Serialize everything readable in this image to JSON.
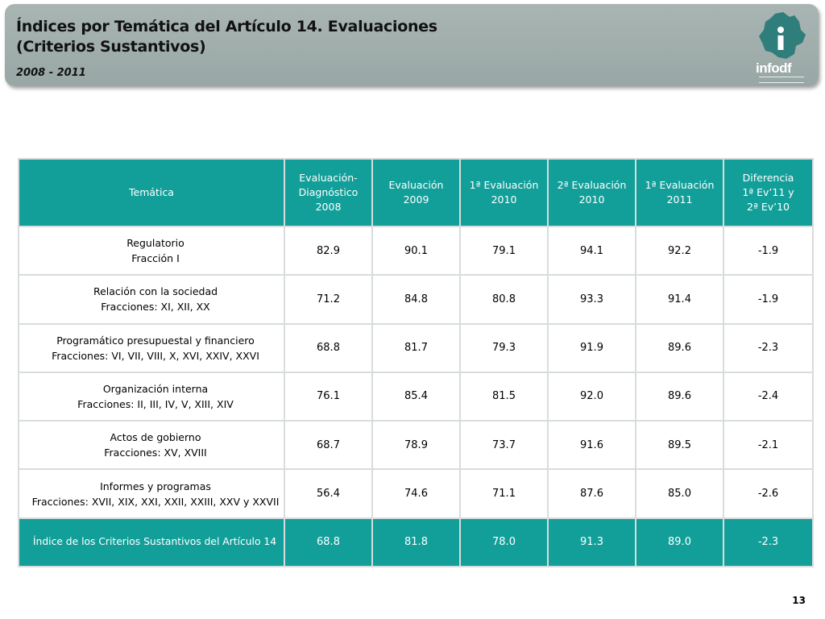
{
  "header": {
    "title_line1": "Índices por Temática del Artículo 14. Evaluaciones",
    "title_line2": "(Criterios Sustantivos)",
    "subtitle": "2008 - 2011",
    "logo_text": "infodf"
  },
  "table": {
    "columns": [
      "Temática",
      "Evaluación-Diagnóstico 2008",
      "Evaluación 2009",
      "1ª Evaluación 2010",
      "2ª Evaluación 2010",
      "1ª Evaluación 2011",
      "Diferencia 1ª Ev’11 y 2ª Ev’10"
    ],
    "column_lines": [
      [
        "Temática"
      ],
      [
        "Evaluación-",
        "Diagnóstico",
        "2008"
      ],
      [
        "Evaluación",
        "2009"
      ],
      [
        "1ª Evaluación",
        "2010"
      ],
      [
        "2ª Evaluación",
        "2010"
      ],
      [
        "1ª Evaluación",
        "2011"
      ],
      [
        "Diferencia",
        "1ª Ev’11 y",
        "2ª Ev’10"
      ]
    ],
    "rows": [
      {
        "topic": "Regulatorio",
        "detail": "Fracción I",
        "values": [
          "82.9",
          "90.1",
          "79.1",
          "94.1",
          "92.2",
          "-1.9"
        ]
      },
      {
        "topic": "Relación con la sociedad",
        "detail": "Fracciones: XI, XII, XX",
        "values": [
          "71.2",
          "84.8",
          "80.8",
          "93.3",
          "91.4",
          "-1.9"
        ]
      },
      {
        "topic": "Programático presupuestal y financiero",
        "detail": "Fracciones: VI, VII, VIII, X, XVI, XXIV, XXVI",
        "values": [
          "68.8",
          "81.7",
          "79.3",
          "91.9",
          "89.6",
          "-2.3"
        ]
      },
      {
        "topic": "Organización interna",
        "detail": "Fracciones: II, III, IV, V, XIII, XIV",
        "values": [
          "76.1",
          "85.4",
          "81.5",
          "92.0",
          "89.6",
          "-2.4"
        ]
      },
      {
        "topic": "Actos de gobierno",
        "detail": "Fracciones: XV, XVIII",
        "values": [
          "68.7",
          "78.9",
          "73.7",
          "91.6",
          "89.5",
          "-2.1"
        ]
      },
      {
        "topic": "Informes y programas",
        "detail": "Fracciones: XVII, XIX, XXI, XXII, XXIII, XXV y XXVII",
        "values": [
          "56.4",
          "74.6",
          "71.1",
          "87.6",
          "85.0",
          "-2.6"
        ]
      }
    ],
    "total": {
      "label": "Índice de los Criterios Sustantivos del Artículo 14",
      "values": [
        "68.8",
        "81.8",
        "78.0",
        "91.3",
        "89.0",
        "-2.3"
      ]
    }
  },
  "footer": {
    "page_number": "13"
  },
  "colors": {
    "teal": "#139f99",
    "header_band": "#a3b0ae"
  }
}
